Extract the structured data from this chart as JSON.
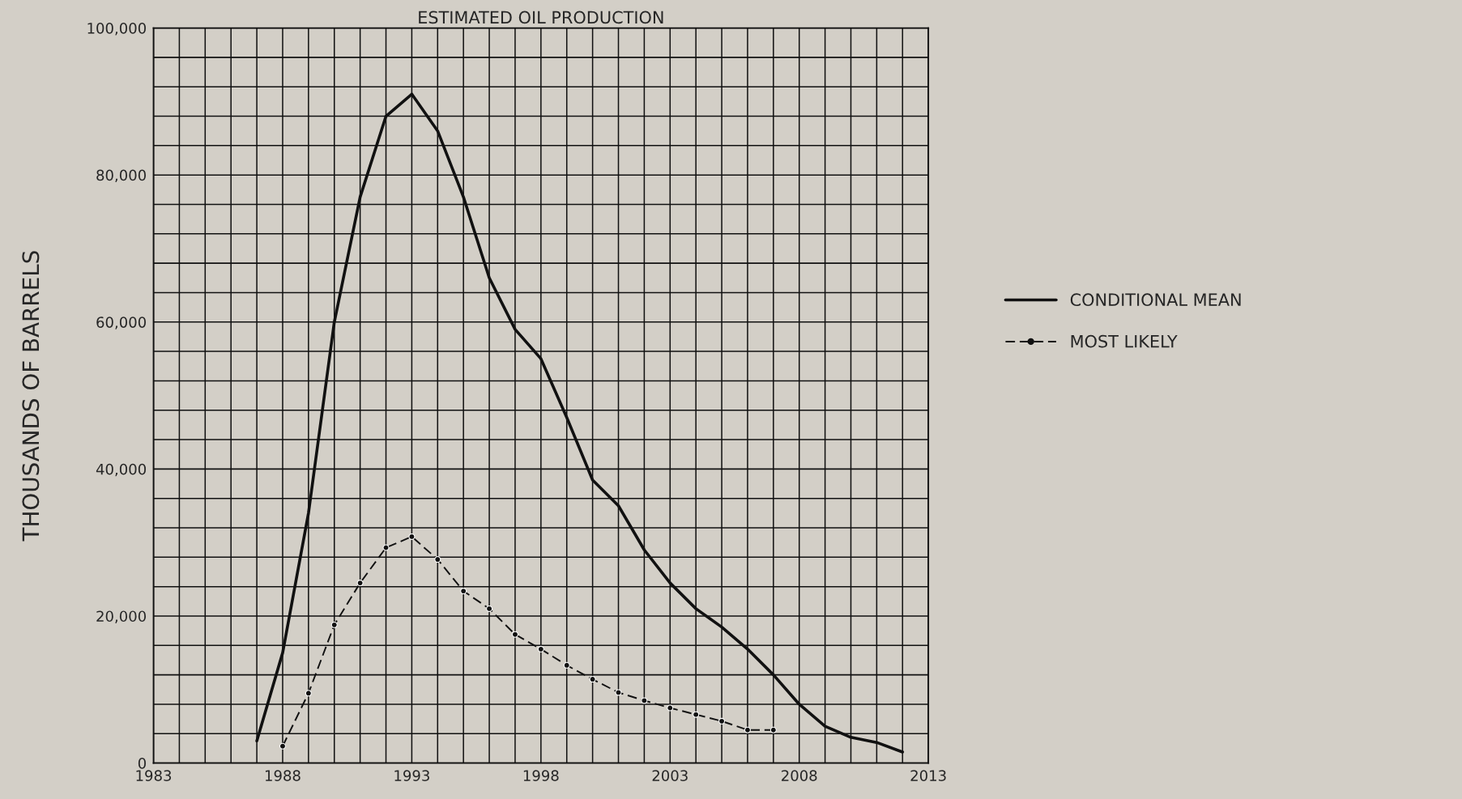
{
  "chart_data": {
    "type": "line",
    "title": "ESTIMATED OIL PRODUCTION",
    "ylabel": "THOUSANDS OF BARRELS",
    "xlim": [
      1983,
      2013
    ],
    "xticks": [
      1983,
      {
        "value": 1984,
        "label": null
      },
      {
        "value": 1985,
        "label": null
      },
      {
        "value": 1986,
        "label": null
      },
      {
        "value": 1987,
        "label": null
      },
      1988,
      {
        "value": 1989,
        "label": null
      },
      {
        "value": 1990,
        "label": null
      },
      {
        "value": 1991,
        "label": null
      },
      {
        "value": 1992,
        "label": null
      },
      1993,
      {
        "value": 1994,
        "label": null
      },
      {
        "value": 1995,
        "label": null
      },
      {
        "value": 1996,
        "label": null
      },
      {
        "value": 1997,
        "label": null
      },
      1998,
      {
        "value": 1999,
        "label": null
      },
      {
        "value": 2000,
        "label": null
      },
      {
        "value": 2001,
        "label": null
      },
      {
        "value": 2002,
        "label": null
      },
      2003,
      {
        "value": 2004,
        "label": null
      },
      {
        "value": 2005,
        "label": null
      },
      {
        "value": 2006,
        "label": null
      },
      {
        "value": 2007,
        "label": null
      },
      2008,
      {
        "value": 2009,
        "label": null
      },
      {
        "value": 2010,
        "label": null
      },
      {
        "value": 2011,
        "label": null
      },
      {
        "value": 2012,
        "label": null
      },
      2013
    ],
    "ylim": [
      0,
      100000
    ],
    "yticks": [
      0,
      {
        "value": 4000,
        "label": null
      },
      {
        "value": 8000,
        "label": null
      },
      {
        "value": 12000,
        "label": null
      },
      {
        "value": 16000,
        "label": null
      },
      {
        "value": 20000,
        "label": "20,000"
      },
      {
        "value": 24000,
        "label": null
      },
      {
        "value": 28000,
        "label": null
      },
      {
        "value": 32000,
        "label": null
      },
      {
        "value": 36000,
        "label": null
      },
      {
        "value": 40000,
        "label": "40,000"
      },
      {
        "value": 44000,
        "label": null
      },
      {
        "value": 48000,
        "label": null
      },
      {
        "value": 52000,
        "label": null
      },
      {
        "value": 56000,
        "label": null
      },
      {
        "value": 60000,
        "label": "60,000"
      },
      {
        "value": 64000,
        "label": null
      },
      {
        "value": 68000,
        "label": null
      },
      {
        "value": 72000,
        "label": null
      },
      {
        "value": 76000,
        "label": null
      },
      {
        "value": 80000,
        "label": "80,000"
      },
      {
        "value": 84000,
        "label": null
      },
      {
        "value": 88000,
        "label": null
      },
      {
        "value": 92000,
        "label": null
      },
      {
        "value": 96000,
        "label": null
      },
      {
        "value": 100000,
        "label": "100,000"
      }
    ],
    "grid": true,
    "legend": "right",
    "series": [
      {
        "name": "CONDITIONAL MEAN",
        "color": "#111111",
        "line_style": "solid",
        "marker": "none",
        "x": [
          1987,
          1988,
          1989,
          1990,
          1991,
          1992,
          1993,
          1994,
          1995,
          1996,
          1997,
          1998,
          1999,
          2000,
          2001,
          2002,
          2003,
          2004,
          2005,
          2006,
          2007,
          2008,
          2009,
          2010,
          2011,
          2012
        ],
        "values": [
          3000,
          15000,
          34000,
          60000,
          77000,
          88000,
          91000,
          86000,
          77000,
          66000,
          59000,
          55000,
          47000,
          38500,
          35000,
          29000,
          24500,
          21000,
          18500,
          15500,
          12000,
          8000,
          5000,
          3500,
          2800,
          1500
        ]
      },
      {
        "name": "MOST LIKELY",
        "color": "#111111",
        "line_style": "dashed",
        "marker": "circle",
        "x": [
          1988,
          1989,
          1990,
          1991,
          1992,
          1993,
          1994,
          1995,
          1996,
          1997,
          1998,
          1999,
          2000,
          2001,
          2002,
          2003,
          2004,
          2005,
          2006,
          2007
        ],
        "values": [
          2300,
          9500,
          18800,
          24500,
          29300,
          30800,
          27700,
          23400,
          21000,
          17500,
          15500,
          13300,
          11400,
          9600,
          8500,
          7500,
          6600,
          5700,
          4500,
          4500
        ]
      }
    ]
  }
}
